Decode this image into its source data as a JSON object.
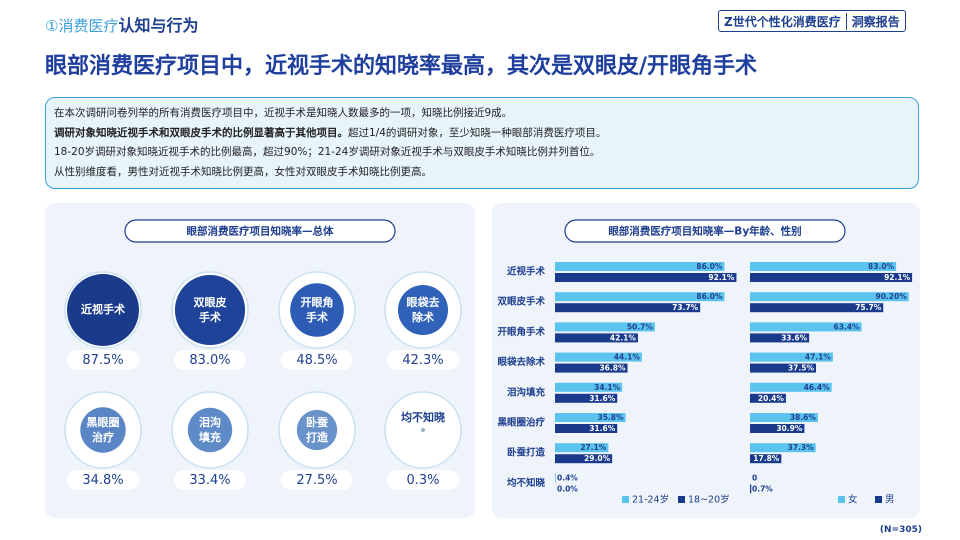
{
  "header": {
    "section": "①消费医疗",
    "topic": "认知与行为",
    "brand": "Z世代个性化消费医疗",
    "brand_tag": "洞察报告"
  },
  "title": "眼部消费医疗项目中，近视手术的知晓率最高，其次是双眼皮/开眼角手术",
  "summary": [
    "在本次调研问卷列举的所有消费医疗项目中，近视手术是知晓人数最多的一项，知晓比例接近9成。",
    "调研对象知晓近视手术和双眼皮手术的比例显著高于其他项目。",
    "超过1/4的调研对象，至少知晓一种眼部消费医疗项目。",
    "18-20岁调研对象知晓近视手术的比例最高，超过90%；21-24岁调研对象近视手术与双眼皮手术知晓比例并列首位。",
    "从性别维度看，男性对近视手术知晓比例更高，女性对双眼皮手术知晓比例更高。"
  ],
  "footnote": "(N=305)",
  "chart_data": [
    {
      "type": "bubble",
      "title": "眼部消费医疗项目知晓率—总体",
      "categories": [
        "近视手术",
        "双眼皮手术",
        "开眼角手术",
        "眼袋去除术",
        "黑眼圈治疗",
        "泪沟填充",
        "卧蚕打造",
        "均不知晓"
      ],
      "values": [
        87.5,
        83.0,
        48.5,
        42.3,
        34.8,
        33.4,
        27.5,
        0.3
      ],
      "value_labels": [
        "87.5%",
        "83.0%",
        "48.5%",
        "42.3%",
        "34.8%",
        "33.4%",
        "27.5%",
        "0.3%"
      ],
      "colors": [
        "#1a3a8c",
        "#1e4399",
        "#2c5cb4",
        "#2f62b8",
        "#5a86c6",
        "#5e8ac8",
        "#6a93cc",
        "#9fb3cc"
      ]
    },
    {
      "type": "bar",
      "orientation": "horizontal",
      "title": "眼部消费医疗项目知晓率—By年龄、性别",
      "categories": [
        "近视手术",
        "双眼皮手术",
        "开眼角手术",
        "眼袋去除术",
        "泪沟填充",
        "黑眼圈治疗",
        "卧蚕打造",
        "均不知晓"
      ],
      "panels": [
        {
          "series": [
            {
              "name": "21-24岁",
              "color": "#5bc4ee",
              "values": [
                86.0,
                86.0,
                50.7,
                44.1,
                34.1,
                35.8,
                27.1,
                0.4
              ],
              "value_labels": [
                "86.0%",
                "86.0%",
                "50.7%",
                "44.1%",
                "34.1%",
                "35.8%",
                "27.1%",
                "0.4%"
              ]
            },
            {
              "name": "18~20岁",
              "color": "#1a3a8c",
              "values": [
                92.1,
                73.7,
                42.1,
                36.8,
                31.6,
                31.6,
                29.0,
                0.0
              ],
              "value_labels": [
                "92.1%",
                "73.7%",
                "42.1%",
                "36.8%",
                "31.6%",
                "31.6%",
                "29.0%",
                "0.0%"
              ]
            }
          ]
        },
        {
          "series": [
            {
              "name": "女",
              "color": "#5bc4ee",
              "values": [
                83.0,
                90.2,
                63.4,
                47.1,
                46.4,
                38.6,
                37.3,
                0
              ],
              "value_labels": [
                "83.0%",
                "90.20%",
                "63.4%",
                "47.1%",
                "46.4%",
                "38.6%",
                "37.3%",
                "0"
              ]
            },
            {
              "name": "男",
              "color": "#1a3a8c",
              "values": [
                92.1,
                75.7,
                33.6,
                37.5,
                20.4,
                30.9,
                17.8,
                0.7
              ],
              "value_labels": [
                "92.1%",
                "75.7%",
                "33.6%",
                "37.5%",
                "20.4%",
                "30.9%",
                "17.8%",
                "0.7%"
              ]
            }
          ]
        }
      ]
    }
  ]
}
